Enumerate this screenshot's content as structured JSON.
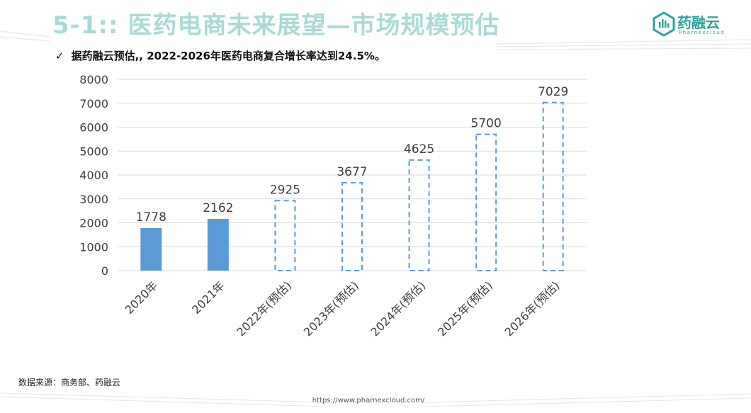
{
  "header": {
    "title": "5-1:: 医药电商未来展望—市场规模预估",
    "logo_text": "药融云",
    "logo_subtext": "Pharnexcloud"
  },
  "bullet": {
    "check": "✓",
    "text": "据药融云预估,, 2022-2026年医药电商复合增长率达到24.5%。"
  },
  "chart_data": {
    "type": "bar",
    "categories": [
      "2020年",
      "2021年",
      "2022年(预估)",
      "2023年(预估)",
      "2024年(预估)",
      "2025年(预估)",
      "2026年(预估)"
    ],
    "values": [
      1778,
      2162,
      2925,
      3677,
      4625,
      5700,
      7029
    ],
    "estimated": [
      false,
      false,
      true,
      true,
      true,
      true,
      true
    ],
    "yticks": [
      0,
      1000,
      2000,
      3000,
      4000,
      5000,
      6000,
      7000,
      8000
    ],
    "ylim": [
      0,
      8000
    ],
    "grid": true,
    "colors": {
      "bar": "#5b9bd5",
      "grid": "#d9d9d9",
      "label": "#404040"
    }
  },
  "footer": {
    "source": "数据来源：商务部、药融云",
    "url": "https://www.pharnexcloud.com/"
  }
}
